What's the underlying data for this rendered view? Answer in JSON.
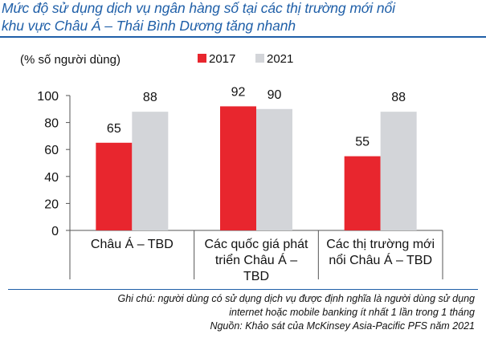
{
  "title_lines": [
    "Mức độ sử dụng dịch vụ ngân hàng số tại các thị trường mới nổi",
    "khu vực Châu Á – Thái Bình Dương tăng nhanh"
  ],
  "chart_data": {
    "type": "bar",
    "title": "Mức độ sử dụng dịch vụ ngân hàng số tại các thị trường mới nổi khu vực Châu Á – Thái Bình Dương tăng nhanh",
    "ylabel": "(% số người dùng)",
    "xlabel": "",
    "categories": [
      [
        "Châu Á – TBD"
      ],
      [
        "Các quốc giá phát",
        "triển Châu Á –",
        "TBD"
      ],
      [
        "Các thị trường mới",
        "nổi Châu Á – TBD"
      ]
    ],
    "series": [
      {
        "name": "2017",
        "color": "#e8262e",
        "values": [
          65,
          92,
          55
        ]
      },
      {
        "name": "2021",
        "color": "#d3d5d9",
        "values": [
          88,
          90,
          88
        ]
      }
    ],
    "ylim": [
      0,
      100
    ],
    "yticks": [
      0,
      20,
      40,
      60,
      80,
      100
    ],
    "grid": false,
    "legend": "top",
    "data_labels": true
  },
  "notes": [
    "Ghi chú: người dùng có sử dụng dịch vụ được định nghĩa là người dùng sử dụng",
    "internet hoặc mobile banking ít nhất 1 lần trong 1 tháng",
    "Nguồn: Khảo sát của McKinsey Asia-Pacific PFS năm 2021"
  ]
}
